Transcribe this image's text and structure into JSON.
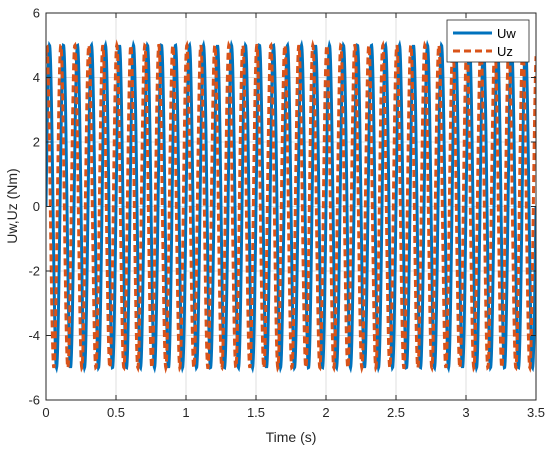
{
  "chart_data": {
    "type": "line",
    "xlabel": "Time (s)",
    "ylabel": "Uw,Uz (Nm)",
    "xlim": [
      0,
      3.5
    ],
    "ylim": [
      -6,
      6
    ],
    "xticks": [
      0,
      0.5,
      1,
      1.5,
      2,
      2.5,
      3,
      3.5
    ],
    "yticks": [
      -6,
      -4,
      -2,
      0,
      2,
      4,
      6
    ],
    "xtick_labels": [
      "0",
      "0.5",
      "1",
      "1.5",
      "2",
      "2.5",
      "3",
      "3.5"
    ],
    "ytick_labels": [
      "-6",
      "-4",
      "-2",
      "0",
      "2",
      "4",
      "6"
    ],
    "grid": true,
    "legend_position": "top-right",
    "series": [
      {
        "name": "Uw",
        "style": "solid",
        "color": "#0072BD",
        "amplitude": 5,
        "frequency_hz": 10,
        "phase_rad": 0
      },
      {
        "name": "Uz",
        "style": "dashed",
        "color": "#D95319",
        "amplitude": 5,
        "frequency_hz": 10,
        "phase_rad": 1.2
      }
    ]
  }
}
